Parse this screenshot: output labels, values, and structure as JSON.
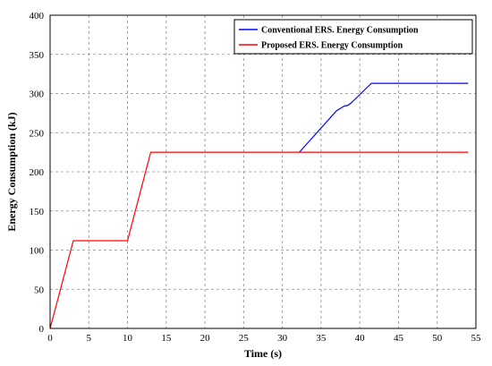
{
  "chart_data": {
    "type": "line",
    "title": "",
    "xlabel": "Time (s)",
    "ylabel": "Energy Consumption (kJ)",
    "xlim": [
      0,
      55
    ],
    "ylim": [
      0,
      400
    ],
    "xticks": [
      0,
      5,
      10,
      15,
      20,
      25,
      30,
      35,
      40,
      45,
      50,
      55
    ],
    "yticks": [
      0,
      50,
      100,
      150,
      200,
      250,
      300,
      350,
      400
    ],
    "grid": true,
    "legend_position": "top-right",
    "series": [
      {
        "name": "Conventional ERS. Energy Consumption",
        "color": "#0000ff",
        "x": [
          32.2,
          37,
          37.5,
          38,
          38.5,
          39,
          41.5,
          54
        ],
        "y": [
          225,
          278,
          281,
          284,
          285,
          289,
          313,
          313
        ]
      },
      {
        "name": "Proposed ERS. Energy Consumption",
        "color": "#ff0000",
        "x": [
          0,
          3,
          10,
          13,
          54
        ],
        "y": [
          0,
          112,
          112,
          225,
          225
        ]
      }
    ]
  }
}
